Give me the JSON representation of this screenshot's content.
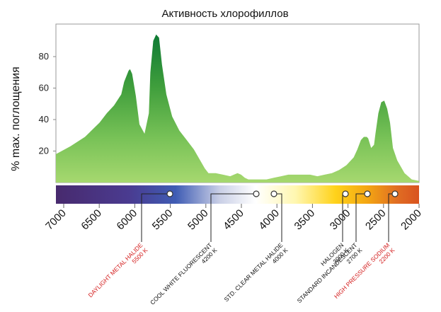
{
  "chart_data": {
    "type": "area",
    "title": "Активность хлорофиллов",
    "ylabel": "% max. поглощения",
    "xlabel": "",
    "yticks": [
      20,
      40,
      60,
      80
    ],
    "ylim": [
      0,
      100
    ],
    "xlim": [
      7000,
      2000
    ],
    "xticks": [
      "7000",
      "6500",
      "6000",
      "5500",
      "5000",
      "4500",
      "4000",
      "3500",
      "3000",
      "2500",
      "2000"
    ],
    "series": [
      {
        "x": [
          7000,
          6800,
          6600,
          6400,
          6300,
          6200,
          6100,
          6060,
          6000,
          5980,
          5950,
          5900,
          5850,
          5780,
          5720,
          5700,
          5660,
          5620,
          5580,
          5540,
          5480,
          5400,
          5300,
          5200,
          5100,
          5000,
          4950,
          4900,
          4850,
          4800,
          4700,
          4600,
          4550,
          4500,
          4450,
          4400,
          4350,
          4300,
          4200,
          4100,
          4000,
          3900,
          3800,
          3700,
          3600,
          3500,
          3400,
          3300,
          3200,
          3100,
          3000,
          2900,
          2850,
          2800,
          2760,
          2720,
          2700,
          2660,
          2620,
          2600,
          2560,
          2520,
          2480,
          2440,
          2400,
          2360,
          2300,
          2200,
          2100,
          2000
        ],
        "values": [
          18,
          23,
          29,
          38,
          44,
          49,
          56,
          64,
          71,
          72,
          69,
          55,
          37,
          31,
          44,
          70,
          90,
          94,
          92,
          75,
          56,
          42,
          33,
          27,
          21,
          13,
          9,
          6,
          6,
          6,
          5,
          4,
          5,
          6,
          5,
          3,
          2,
          2,
          2,
          2,
          3,
          4,
          5,
          5,
          5,
          5,
          4,
          5,
          6,
          8,
          11,
          16,
          21,
          27,
          29,
          29,
          28,
          22,
          24,
          31,
          44,
          51,
          52,
          47,
          38,
          22,
          14,
          6,
          2,
          1
        ]
      }
    ],
    "lamps": [
      {
        "name": "DAYLIGHT METAL HALIDE",
        "temp": "5500 K",
        "value": 5500,
        "color": "#d42020"
      },
      {
        "name": "COOL WHITE FLUORESCENT",
        "temp": "4200 K",
        "value": 4200,
        "color": "#111111"
      },
      {
        "name": "STD. CLEAR METAL HALIDE",
        "temp": "4000 K",
        "value": 4000,
        "color": "#111111"
      },
      {
        "name": "HALOGEN",
        "temp": "3000 K",
        "value": 3000,
        "color": "#111111"
      },
      {
        "name": "STANDARD INCANDESCENT",
        "temp": "2700 K",
        "value": 2700,
        "color": "#111111"
      },
      {
        "name": "HIGH PRESSURE SODIUM",
        "temp": "2200 K",
        "value": 2200,
        "color": "#d42020"
      }
    ]
  }
}
